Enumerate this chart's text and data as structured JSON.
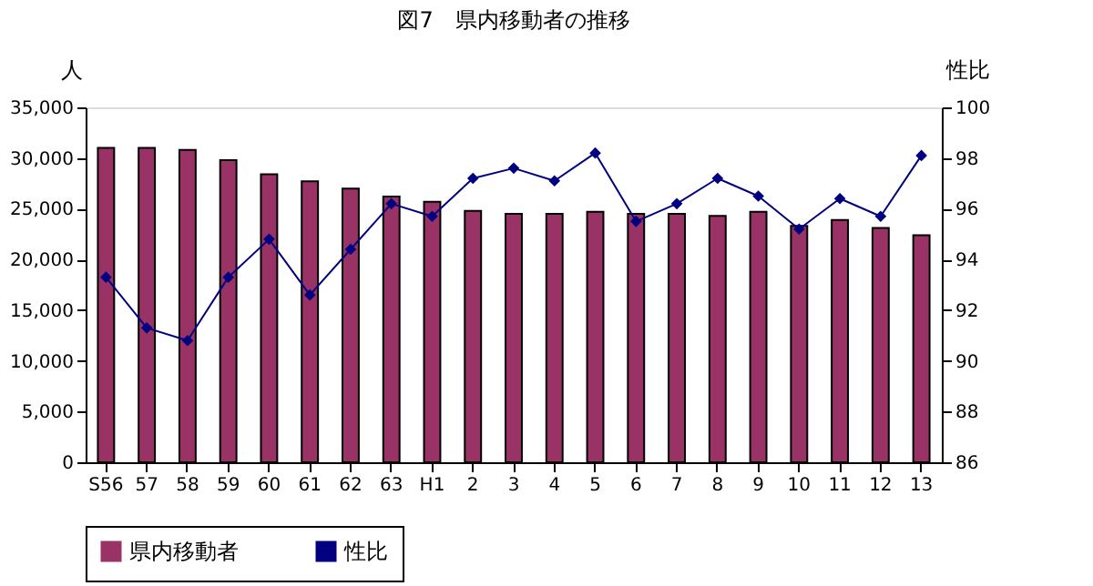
{
  "chart_data": {
    "type": "bar",
    "title": "図7　県内移動者の推移",
    "ylabel": "人",
    "y2label": "性比",
    "categories": [
      "S56",
      "57",
      "58",
      "59",
      "60",
      "61",
      "62",
      "63",
      "H1",
      "2",
      "3",
      "4",
      "5",
      "6",
      "7",
      "8",
      "9",
      "10",
      "11",
      "12",
      "13"
    ],
    "series": [
      {
        "name": "県内移動者",
        "color": "#993366",
        "values": [
          31000,
          31000,
          30800,
          29800,
          28400,
          27700,
          27000,
          26200,
          25700,
          24800,
          24500,
          24500,
          24700,
          24500,
          24500,
          24300,
          24700,
          23300,
          23900,
          23100,
          22400
        ]
      },
      {
        "name": "性比",
        "type": "line",
        "axis": "y2",
        "color": "#000080",
        "values": [
          93.3,
          91.3,
          90.8,
          93.3,
          94.8,
          92.6,
          94.4,
          96.2,
          95.7,
          97.2,
          97.6,
          97.1,
          98.2,
          95.5,
          96.2,
          97.2,
          96.5,
          95.2,
          96.4,
          95.7,
          98.1
        ]
      }
    ],
    "ylim": [
      0,
      35000
    ],
    "yticks": [
      0,
      {
        "value": 5000,
        "label": "5,000"
      },
      {
        "value": 10000,
        "label": "10,000"
      },
      {
        "value": 15000,
        "label": "15,000"
      },
      {
        "value": 20000,
        "label": "20,000"
      },
      {
        "value": 25000,
        "label": "25,000"
      },
      {
        "value": 30000,
        "label": "30,000"
      },
      {
        "value": 35000,
        "label": "35,000"
      }
    ],
    "y2lim": [
      86,
      100
    ],
    "y2ticks": [
      86,
      88,
      90,
      92,
      94,
      96,
      98,
      100
    ],
    "grid": false,
    "legend": "bottom",
    "marker": "diamond",
    "line_style": "solid"
  }
}
